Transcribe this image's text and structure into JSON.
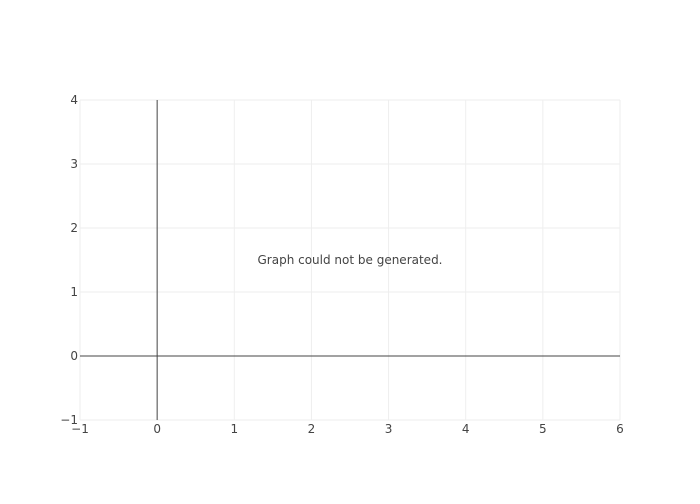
{
  "chart_data": {
    "type": "scatter",
    "title": "",
    "xlabel": "",
    "ylabel": "",
    "xlim": [
      -1,
      6
    ],
    "ylim": [
      -1,
      4
    ],
    "x_ticks": [
      -1,
      0,
      1,
      2,
      3,
      4,
      5,
      6
    ],
    "y_ticks": [
      -1,
      0,
      1,
      2,
      3,
      4
    ],
    "x_tick_labels": [
      "−1",
      "0",
      "1",
      "2",
      "3",
      "4",
      "5",
      "6"
    ],
    "y_tick_labels": [
      "−1",
      "0",
      "1",
      "2",
      "3",
      "4"
    ],
    "grid": true,
    "series": [],
    "annotations": [
      {
        "text": "Graph could not be generated.",
        "x": 2.5,
        "y": 1.5
      }
    ]
  },
  "colors": {
    "grid": "#eeeeee",
    "zeroline": "#444444",
    "text": "#444444"
  }
}
